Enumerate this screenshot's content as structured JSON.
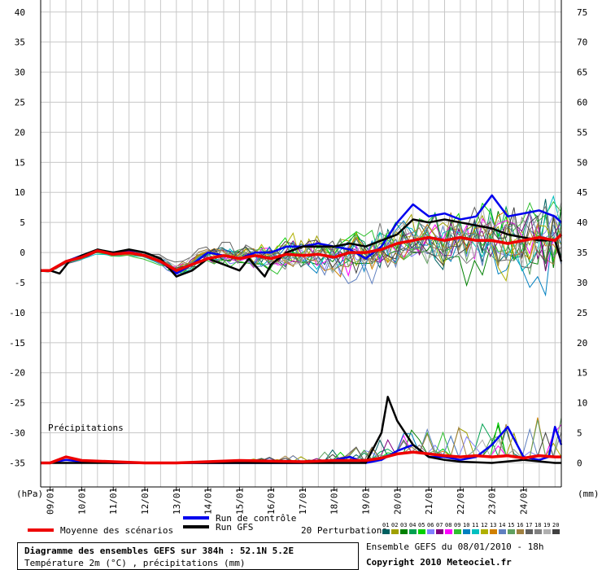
{
  "chart_data": {
    "type": "line",
    "title": "Diagramme des ensembles GEFS sur 384h : 52.1N 5.2E",
    "subtitle": "Température 2m (°C) , précipitations (mm)",
    "left_axis": {
      "unit": "(hPa)",
      "ticks": [
        40,
        35,
        30,
        25,
        20,
        15,
        10,
        5,
        0,
        -5,
        -10,
        -15,
        -20,
        -25,
        -30,
        -35
      ],
      "range": [
        -39,
        42
      ]
    },
    "right_axis": {
      "unit": "(mm)",
      "ticks": [
        75,
        70,
        65,
        60,
        55,
        50,
        45,
        40,
        35,
        30,
        25,
        20,
        15,
        10,
        5,
        0
      ]
    },
    "x_ticks": [
      "09/01",
      "10/01",
      "11/01",
      "12/01",
      "13/01",
      "14/01",
      "15/01",
      "16/01",
      "17/01",
      "18/01",
      "19/01",
      "20/01",
      "21/01",
      "22/01",
      "23/01",
      "24/01"
    ],
    "x_range": [
      8.7,
      25.2
    ],
    "precip_label": "Précipitations",
    "series": [
      {
        "name": "Run de contrôle",
        "color": "#0000ee",
        "temp": [
          [
            8.7,
            -3
          ],
          [
            9,
            -3
          ],
          [
            9.5,
            -1.5
          ],
          [
            10,
            -0.5
          ],
          [
            10.5,
            0.3
          ],
          [
            11,
            0
          ],
          [
            11.5,
            0.2
          ],
          [
            12,
            -0.5
          ],
          [
            12.5,
            -1.5
          ],
          [
            13,
            -3.5
          ],
          [
            13.5,
            -2
          ],
          [
            14,
            0
          ],
          [
            14.5,
            -0.5
          ],
          [
            15,
            -1
          ],
          [
            15.5,
            0
          ],
          [
            16,
            0
          ],
          [
            16.5,
            1
          ],
          [
            17,
            1
          ],
          [
            17.5,
            1.5
          ],
          [
            18,
            1
          ],
          [
            18.5,
            0.5
          ],
          [
            19,
            -1
          ],
          [
            19.5,
            1
          ],
          [
            20,
            5
          ],
          [
            20.5,
            8
          ],
          [
            21,
            6
          ],
          [
            21.5,
            6.5
          ],
          [
            22,
            5.5
          ],
          [
            22.5,
            6
          ],
          [
            23,
            9.5
          ],
          [
            23.5,
            6
          ],
          [
            24,
            6.5
          ],
          [
            24.5,
            7
          ],
          [
            25,
            6
          ],
          [
            25.2,
            5
          ]
        ],
        "precip": [
          [
            8.7,
            0
          ],
          [
            9,
            0
          ],
          [
            9.5,
            0.5
          ],
          [
            10,
            0.2
          ],
          [
            11,
            0
          ],
          [
            12,
            0
          ],
          [
            13,
            0
          ],
          [
            14,
            0
          ],
          [
            15,
            0
          ],
          [
            16,
            0
          ],
          [
            17,
            0
          ],
          [
            18,
            0.5
          ],
          [
            18.5,
            1
          ],
          [
            19,
            0
          ],
          [
            19.5,
            0.5
          ],
          [
            20,
            2
          ],
          [
            20.5,
            3
          ],
          [
            21,
            1
          ],
          [
            21.5,
            1
          ],
          [
            22,
            0.5
          ],
          [
            22.5,
            1
          ],
          [
            23,
            3
          ],
          [
            23.5,
            6
          ],
          [
            24,
            1
          ],
          [
            24.5,
            0.5
          ],
          [
            24.8,
            1
          ],
          [
            25,
            6
          ],
          [
            25.2,
            3
          ]
        ]
      },
      {
        "name": "Run GFS",
        "color": "#000000",
        "temp": [
          [
            8.7,
            -3
          ],
          [
            9,
            -3
          ],
          [
            9.3,
            -3.5
          ],
          [
            9.6,
            -1.5
          ],
          [
            10,
            -0.5
          ],
          [
            10.5,
            0.5
          ],
          [
            11,
            0
          ],
          [
            11.5,
            0.5
          ],
          [
            12,
            0
          ],
          [
            12.5,
            -1
          ],
          [
            13,
            -4
          ],
          [
            13.5,
            -3
          ],
          [
            14,
            -1
          ],
          [
            14.5,
            -2
          ],
          [
            15,
            -3
          ],
          [
            15.3,
            -1
          ],
          [
            15.8,
            -4
          ],
          [
            16,
            -2
          ],
          [
            16.5,
            0
          ],
          [
            17,
            1
          ],
          [
            17.5,
            1
          ],
          [
            18,
            1
          ],
          [
            18.5,
            1.5
          ],
          [
            19,
            1
          ],
          [
            19.5,
            2
          ],
          [
            20,
            3
          ],
          [
            20.5,
            5.5
          ],
          [
            21,
            5
          ],
          [
            21.5,
            5.5
          ],
          [
            22,
            5
          ],
          [
            22.5,
            4.5
          ],
          [
            23,
            4
          ],
          [
            23.5,
            3
          ],
          [
            24,
            2.5
          ],
          [
            24.5,
            2
          ],
          [
            25,
            2
          ],
          [
            25.2,
            -1.5
          ]
        ],
        "precip": [
          [
            8.7,
            0
          ],
          [
            9,
            0
          ],
          [
            10,
            0
          ],
          [
            12,
            0
          ],
          [
            14,
            0
          ],
          [
            16,
            0
          ],
          [
            18,
            0
          ],
          [
            19,
            0
          ],
          [
            19.5,
            5
          ],
          [
            19.7,
            11
          ],
          [
            20,
            7
          ],
          [
            20.5,
            3
          ],
          [
            21,
            1
          ],
          [
            21.5,
            0.5
          ],
          [
            22,
            0.2
          ],
          [
            23,
            0
          ],
          [
            24,
            0.5
          ],
          [
            25,
            0
          ],
          [
            25.2,
            0
          ]
        ]
      },
      {
        "name": "Moyenne des scénarios",
        "color": "#ee0000",
        "temp": [
          [
            8.7,
            -3
          ],
          [
            9,
            -3
          ],
          [
            9.5,
            -1.5
          ],
          [
            10,
            -0.8
          ],
          [
            10.5,
            0.3
          ],
          [
            11,
            -0.3
          ],
          [
            11.5,
            0
          ],
          [
            12,
            -0.5
          ],
          [
            12.5,
            -1.5
          ],
          [
            13,
            -3
          ],
          [
            13.5,
            -2
          ],
          [
            14,
            -1
          ],
          [
            14.5,
            -0.5
          ],
          [
            15,
            -1
          ],
          [
            15.5,
            -0.5
          ],
          [
            16,
            -1
          ],
          [
            16.5,
            -0.3
          ],
          [
            17,
            -0.5
          ],
          [
            17.5,
            -0.3
          ],
          [
            18,
            -0.8
          ],
          [
            18.5,
            0
          ],
          [
            19,
            0
          ],
          [
            19.5,
            0.5
          ],
          [
            20,
            1.5
          ],
          [
            20.5,
            2
          ],
          [
            21,
            2.5
          ],
          [
            21.5,
            2
          ],
          [
            22,
            2.5
          ],
          [
            22.5,
            2
          ],
          [
            23,
            2
          ],
          [
            23.5,
            1.5
          ],
          [
            24,
            2
          ],
          [
            24.5,
            2.5
          ],
          [
            25,
            2
          ],
          [
            25.2,
            3
          ]
        ],
        "precip": [
          [
            8.7,
            0
          ],
          [
            9,
            0
          ],
          [
            9.5,
            1
          ],
          [
            10,
            0.4
          ],
          [
            11,
            0.2
          ],
          [
            12,
            0
          ],
          [
            13,
            0
          ],
          [
            14,
            0.2
          ],
          [
            15,
            0.4
          ],
          [
            16,
            0.3
          ],
          [
            17,
            0.2
          ],
          [
            18,
            0.4
          ],
          [
            19,
            0.4
          ],
          [
            19.5,
            0.8
          ],
          [
            20,
            1.5
          ],
          [
            20.5,
            1.8
          ],
          [
            21,
            1.5
          ],
          [
            21.5,
            1.2
          ],
          [
            22,
            1
          ],
          [
            22.5,
            1.2
          ],
          [
            23,
            1
          ],
          [
            23.5,
            1.2
          ],
          [
            24,
            0.8
          ],
          [
            24.5,
            1.2
          ],
          [
            25,
            1
          ],
          [
            25.2,
            1
          ]
        ]
      }
    ],
    "perturbation_colors": [
      "#006060",
      "#a0a000",
      "#008000",
      "#00a050",
      "#00d000",
      "#8080ff",
      "#800080",
      "#ff00ff",
      "#30c030",
      "#0080c0",
      "#00c0c0",
      "#b0b000",
      "#d08000",
      "#6080c0",
      "#60a060",
      "#a08040",
      "#606060",
      "#808080",
      "#b0b0b0",
      "#404040"
    ]
  },
  "legend": {
    "mean_label": "Moyenne des scénarios",
    "control_label": "Run de contrôle",
    "gfs_label": "Run GFS",
    "perturb_label": "20 Perturbations",
    "perturb_numbers": [
      "01",
      "02",
      "03",
      "04",
      "05",
      "06",
      "07",
      "08",
      "09",
      "10",
      "11",
      "12",
      "13",
      "14",
      "15",
      "16",
      "17",
      "18",
      "19",
      "20"
    ]
  },
  "footer": {
    "title": "Diagramme des ensembles GEFS sur 384h : 52.1N 5.2E",
    "subtitle": "Température 2m (°C) , précipitations (mm)",
    "ensemble_run": "Ensemble GEFS du 08/01/2010 - 18h",
    "copyright": "Copyright 2010 Meteociel.fr"
  }
}
